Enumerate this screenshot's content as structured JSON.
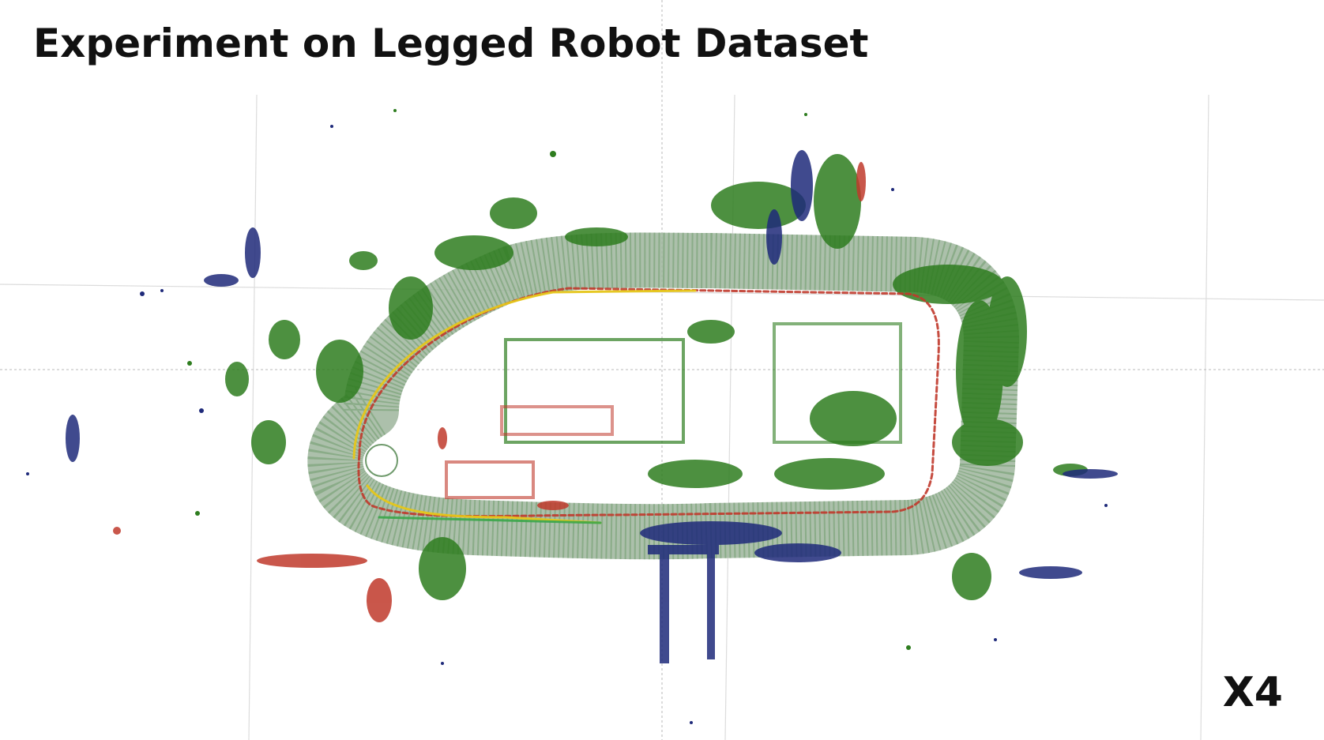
{
  "slide": {
    "title": "Experiment on Legged Robot Dataset",
    "badge": "X4"
  },
  "map": {
    "colors": {
      "ground": "#8aa98a",
      "vegetation": "#2e7d1f",
      "structure": "#1f2a7a",
      "highlight": "#c0392b",
      "trajectory_primary": "#e6c619",
      "trajectory_secondary": "#c0392b",
      "trajectory_tertiary": "#3aa64a",
      "grid": "#d8d8d8"
    }
  }
}
